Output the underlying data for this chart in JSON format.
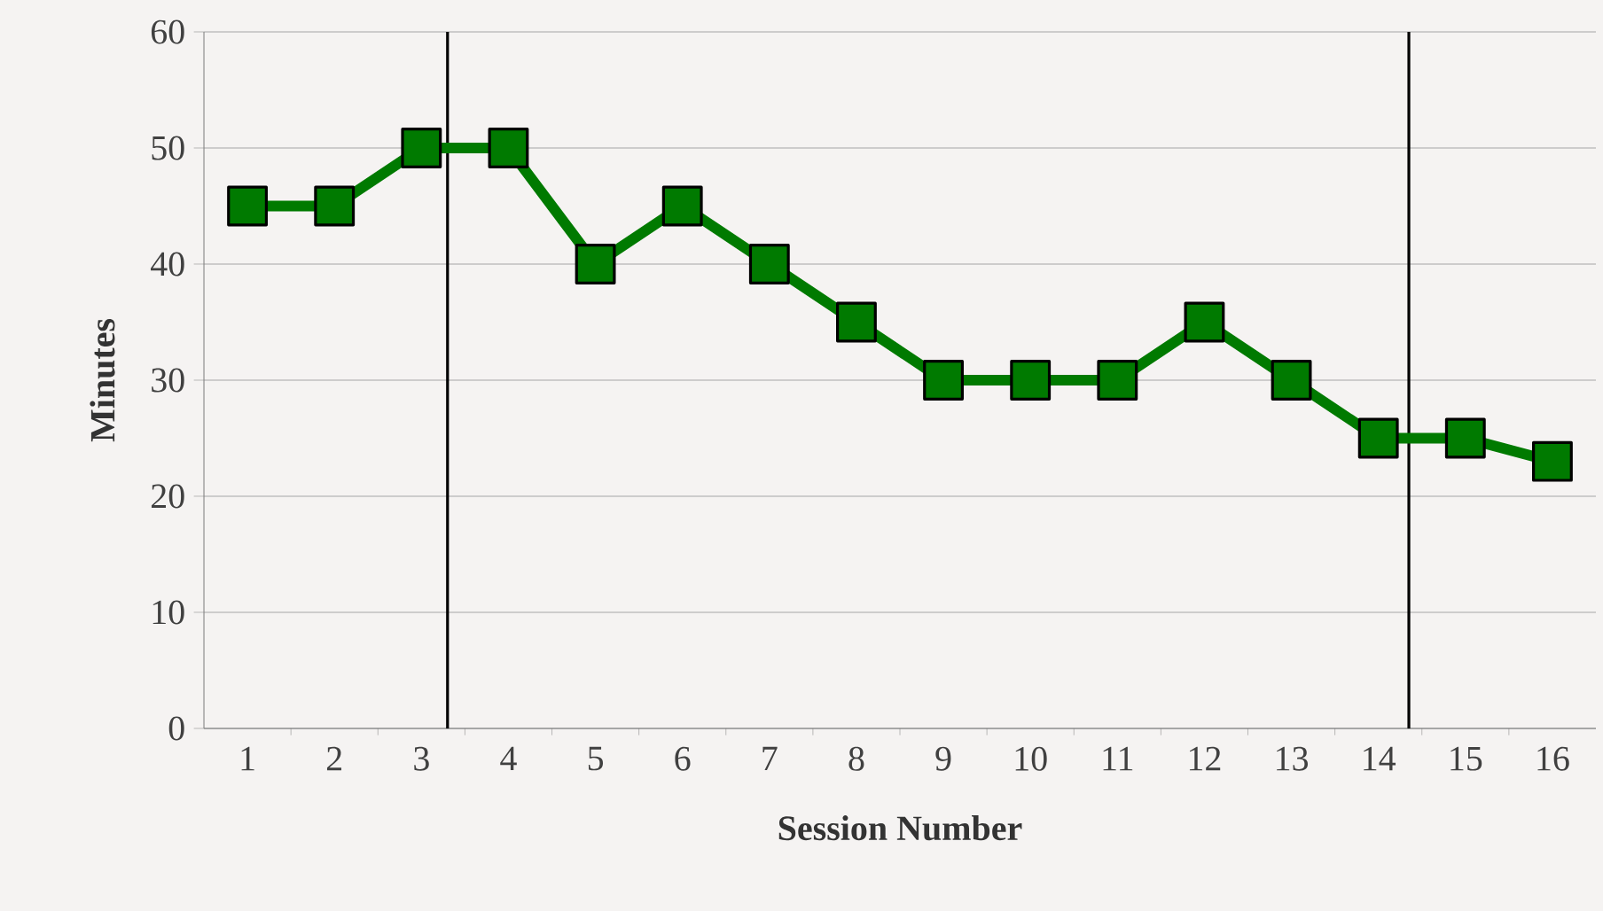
{
  "chart_data": {
    "type": "line",
    "xlabel": "Session Number",
    "ylabel": "Minutes",
    "x": [
      1,
      2,
      3,
      4,
      5,
      6,
      7,
      8,
      9,
      10,
      11,
      12,
      13,
      14,
      15,
      16
    ],
    "series": [
      {
        "color": "#007a00",
        "values": [
          45,
          45,
          50,
          50,
          40,
          45,
          40,
          35,
          30,
          30,
          30,
          35,
          30,
          25,
          25,
          23
        ]
      }
    ],
    "xlim": [
      0.5,
      16.5
    ],
    "xticks": [
      1,
      2,
      3,
      4,
      5,
      6,
      7,
      8,
      9,
      10,
      11,
      12,
      13,
      14,
      15,
      16
    ],
    "ylim": [
      0,
      60
    ],
    "yticks": [
      0,
      10,
      20,
      30,
      40,
      50,
      60
    ],
    "ref_lines": [
      {
        "axis": "x",
        "value": 3.3,
        "color": "#000000"
      },
      {
        "axis": "x",
        "value": 14.35,
        "color": "#000000"
      }
    ],
    "grid": "y",
    "marker": "square",
    "line_style": "solid"
  }
}
